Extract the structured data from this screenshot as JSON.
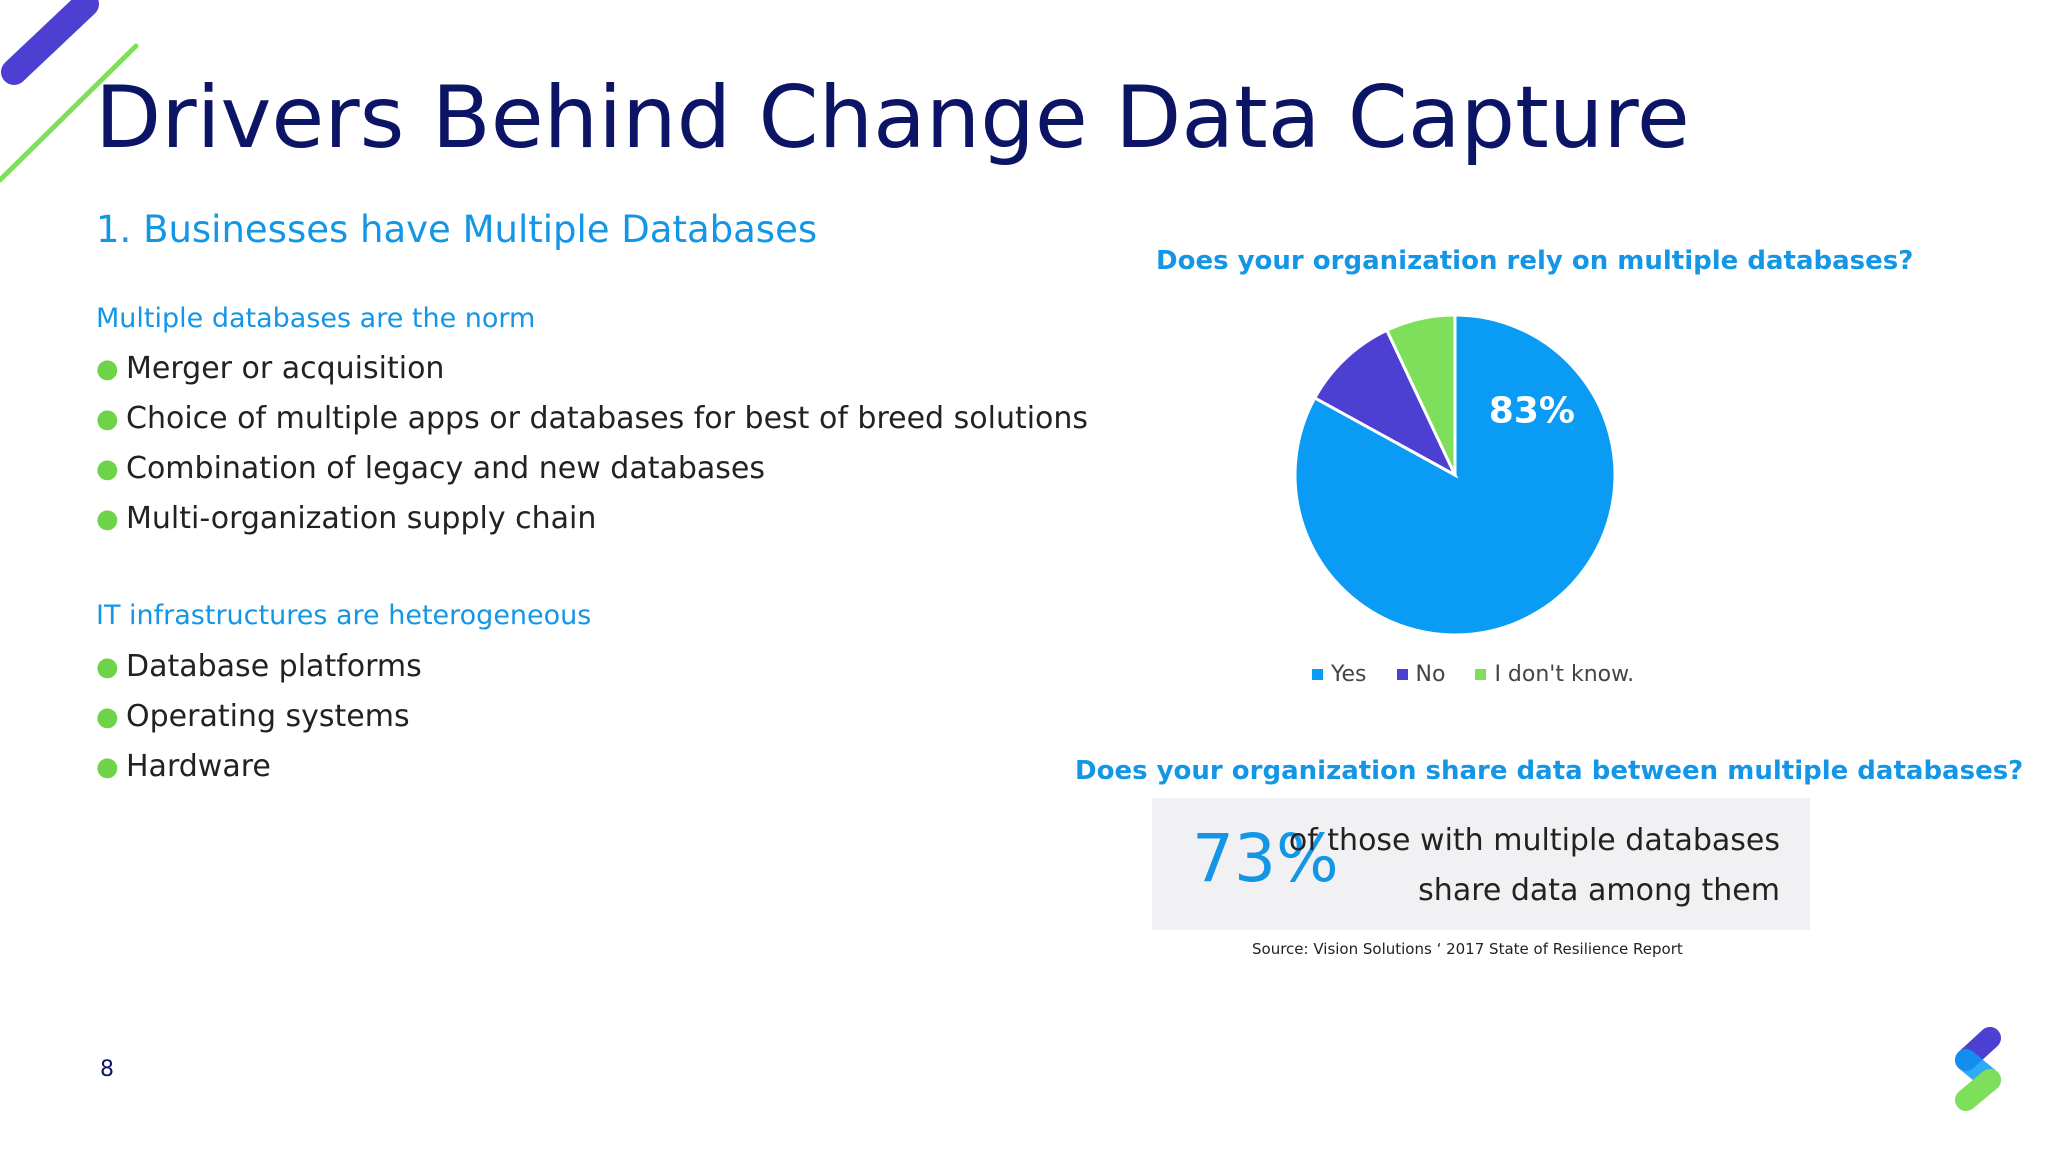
{
  "slide": {
    "title": "Drivers Behind Change Data Capture",
    "subtitle": "1. Businesses have Multiple Databases",
    "page_number": "8"
  },
  "sections": [
    {
      "heading": "Multiple databases are the norm",
      "bullets": [
        "Merger or acquisition",
        "Choice of multiple apps or databases for best of breed solutions",
        "Combination of legacy and new databases",
        "Multi-organization supply chain"
      ]
    },
    {
      "heading": "IT infrastructures are heterogeneous",
      "bullets": [
        "Database platforms",
        "Operating systems",
        "Hardware"
      ]
    }
  ],
  "colors": {
    "title": "#0c1466",
    "accent": "#1496e6",
    "bullet": "#6fd34a",
    "yes": "#0a9cf5",
    "no": "#4d3fd1",
    "dont_know": "#7ee05a"
  },
  "chart_data": {
    "type": "pie",
    "title": "Does your organization rely on multiple databases?",
    "categories": [
      "Yes",
      "No",
      "I don't know."
    ],
    "values": [
      83,
      10,
      7
    ],
    "data_label": "83%",
    "legend": "bottom"
  },
  "stat": {
    "question": "Does your organization share data between multiple databases?",
    "value": "73%",
    "line1": "of those with multiple databases",
    "line2": "share data among them"
  },
  "source": "Source: Vision Solutions ‘ 2017 State of Resilience Report"
}
